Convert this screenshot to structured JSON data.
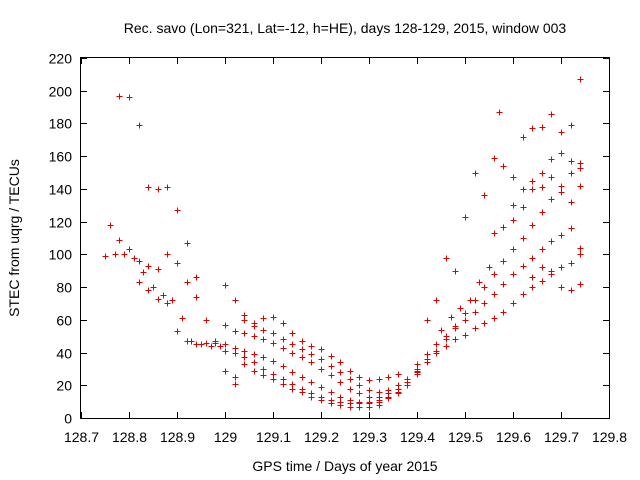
{
  "chart_data": {
    "type": "scatter",
    "title": "Rec. savo (Lon=321, Lat=-12, h=HE), days 128-129, 2015, window 003",
    "xlabel": "GPS time / Days of year 2015",
    "ylabel": "STEC from uqrg / TECUs",
    "xlim": [
      128.7,
      129.8
    ],
    "ylim": [
      0,
      220
    ],
    "xticks": [
      "128.7",
      "128.8",
      "128.9",
      "129",
      "129.1",
      "129.2",
      "129.3",
      "129.4",
      "129.5",
      "129.6",
      "129.7",
      "129.8"
    ],
    "yticks": [
      "0",
      "20",
      "40",
      "60",
      "80",
      "100",
      "120",
      "140",
      "160",
      "180",
      "200",
      "220"
    ],
    "grid": false,
    "marker": "+",
    "color": "#e00000",
    "series": [
      {
        "tracks": [
          {
            "x": [
              128.78,
              128.8,
              128.82,
              128.84,
              128.86,
              128.88,
              128.9,
              128.92,
              128.94
            ],
            "y": [
              197,
              196,
              179,
              141,
              140,
              141,
              127,
              107,
              86
            ]
          },
          {
            "x": [
              128.76,
              128.78,
              128.8,
              128.82,
              128.84,
              128.86,
              128.88,
              128.9,
              128.92,
              128.94,
              128.96,
              128.98
            ],
            "y": [
              118,
              109,
              103,
              96,
              93,
              91,
              100,
              95,
              83,
              74,
              60,
              47
            ]
          },
          {
            "x": [
              128.75,
              128.77,
              128.79,
              128.81,
              128.83,
              128.85,
              128.87,
              128.89,
              128.91,
              128.93,
              128.95,
              128.97,
              128.99
            ],
            "y": [
              99,
              100,
              100,
              98,
              89,
              80,
              75,
              72,
              61,
              47,
              45,
              44,
              44
            ]
          },
          {
            "x": [
              128.82,
              128.84,
              128.86,
              128.88,
              128.9,
              128.92,
              128.94,
              128.96,
              128.98
            ],
            "y": [
              83,
              78,
              73,
              70,
              53,
              47,
              45,
              46,
              46
            ]
          },
          {
            "x": [
              129.0,
              129.02,
              129.04,
              129.06,
              129.08,
              129.1,
              129.12,
              129.14,
              129.16,
              129.18,
              129.2,
              129.22,
              129.24,
              129.26,
              129.28,
              129.3,
              129.32,
              129.34,
              129.36,
              129.38,
              129.4
            ],
            "y": [
              81,
              72,
              63,
              58,
              54,
              52,
              48,
              45,
              42,
              39,
              36,
              32,
              28,
              24,
              20,
              17,
              16,
              17,
              20,
              24,
              29
            ]
          },
          {
            "x": [
              129.0,
              129.02,
              129.04,
              129.06,
              129.08,
              129.1,
              129.12,
              129.14,
              129.16,
              129.18,
              129.2,
              129.22,
              129.24,
              129.26,
              129.28,
              129.3,
              129.32,
              129.34,
              129.36,
              129.38,
              129.4
            ],
            "y": [
              57,
              53,
              52,
              50,
              48,
              46,
              43,
              40,
              37,
              34,
              30,
              26,
              22,
              18,
              15,
              13,
              13,
              15,
              18,
              22,
              27
            ]
          },
          {
            "x": [
              129.0,
              129.02,
              129.04,
              129.06,
              129.08,
              129.1,
              129.12,
              129.14,
              129.16,
              129.18,
              129.2,
              129.22,
              129.24,
              129.26,
              129.28,
              129.3,
              129.32,
              129.34,
              129.36,
              129.38
            ],
            "y": [
              45,
              43,
              41,
              39,
              37,
              35,
              32,
              28,
              25,
              22,
              19,
              16,
              13,
              11,
              10,
              10,
              11,
              13,
              16,
              20
            ]
          },
          {
            "x": [
              129.0,
              129.02,
              129.04,
              129.06,
              129.08,
              129.1,
              129.12,
              129.14,
              129.16,
              129.18,
              129.2,
              129.22,
              129.24,
              129.26,
              129.28,
              129.3,
              129.32,
              129.34,
              129.36
            ],
            "y": [
              41,
              40,
              37,
              34,
              30,
              27,
              24,
              21,
              18,
              15,
              13,
              11,
              10,
              9,
              9,
              9,
              10,
              12,
              15
            ]
          },
          {
            "x": [
              129.0,
              129.02,
              129.04,
              129.06,
              129.08,
              129.1,
              129.12,
              129.14,
              129.16,
              129.18,
              129.2,
              129.22,
              129.24,
              129.26,
              129.28,
              129.3,
              129.32
            ],
            "y": [
              29,
              25,
              33,
              29,
              26,
              24,
              21,
              18,
              16,
              13,
              11,
              9,
              8,
              7,
              7,
              7,
              8
            ]
          },
          {
            "x": [
              129.02,
              129.04,
              129.06,
              129.08,
              129.1,
              129.12,
              129.14,
              129.16,
              129.18,
              129.2,
              129.22,
              129.24,
              129.26,
              129.28,
              129.3,
              129.32,
              129.34,
              129.36
            ],
            "y": [
              21,
              60,
              56,
              61,
              62,
              58,
              52,
              47,
              44,
              42,
              38,
              34,
              29,
              25,
              23,
              24,
              25,
              27
            ]
          },
          {
            "x": [
              129.4,
              129.42,
              129.44,
              129.46,
              129.48,
              129.5,
              129.52,
              129.54,
              129.56,
              129.58,
              129.6,
              129.62,
              129.64,
              129.66,
              129.68,
              129.7,
              129.72,
              129.74
            ],
            "y": [
              30,
              36,
              40,
              44,
              48,
              51,
              55,
              58,
              61,
              65,
              70,
              76,
              80,
              84,
              88,
              92,
              95,
              100
            ]
          },
          {
            "x": [
              129.4,
              129.42,
              129.44,
              129.46,
              129.48,
              129.5,
              129.52,
              129.54,
              129.56,
              129.58,
              129.6,
              129.62,
              129.64,
              129.66,
              129.68,
              129.7,
              129.72,
              129.74
            ],
            "y": [
              33,
              39,
              45,
              50,
              55,
              60,
              65,
              70,
              76,
              82,
              88,
              93,
              98,
              103,
              108,
              112,
              116,
              104
            ]
          },
          {
            "x": [
              129.4,
              129.42,
              129.44,
              129.46,
              129.48,
              129.5,
              129.52,
              129.54,
              129.56,
              129.58,
              129.6,
              129.62,
              129.64,
              129.66,
              129.68,
              129.7,
              129.72,
              129.74
            ],
            "y": [
              28,
              34,
              41,
              48,
              56,
              64,
              72,
              80,
              88,
              96,
              103,
              110,
              118,
              126,
              134,
              142,
              150,
              156
            ]
          },
          {
            "x": [
              129.42,
              129.44,
              129.46,
              129.48,
              129.5,
              129.52,
              129.54,
              129.56,
              129.58,
              129.6,
              129.62,
              129.64,
              129.66,
              129.68,
              129.7,
              129.72,
              129.74
            ],
            "y": [
              60,
              72,
              98,
              90,
              123,
              150,
              136,
              113,
              117,
              121,
              129,
              140,
              150,
              158,
              162,
              157,
              153
            ]
          },
          {
            "x": [
              129.56,
              129.58,
              129.6,
              129.62,
              129.64,
              129.66,
              129.68,
              129.7,
              129.72,
              129.74
            ],
            "y": [
              159,
              154,
              147,
              172,
              177,
              178,
              186,
              175,
              179,
              207
            ]
          },
          {
            "x": [
              129.6,
              129.62,
              129.64,
              129.66,
              129.68,
              129.7,
              129.72,
              129.74
            ],
            "y": [
              130,
              140,
              145,
              141,
              147,
              138,
              132,
              142
            ]
          },
          {
            "x": [
              129.64,
              129.66,
              129.68,
              129.7,
              129.72,
              129.74
            ],
            "y": [
              86,
              92,
              90,
              80,
              78,
              82
            ]
          },
          {
            "x": [
              129.45,
              129.47,
              129.49,
              129.51,
              129.53,
              129.55,
              129.57
            ],
            "y": [
              54,
              62,
              67,
              72,
              83,
              92,
              187
            ]
          }
        ]
      }
    ]
  }
}
